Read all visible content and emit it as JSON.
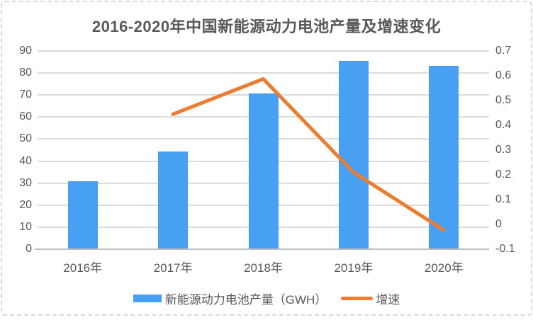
{
  "chart_data": {
    "type": "bar",
    "subtype": "combo-bar-line-dual-axis",
    "title": "2016-2020年中国新能源动力电池产量及增速变化",
    "categories": [
      "2016年",
      "2017年",
      "2018年",
      "2019年",
      "2020年"
    ],
    "series": [
      {
        "name": "新能源动力电池产量（GWH）",
        "type": "bar",
        "axis": "left",
        "color": "#47A0F4",
        "values": [
          30.8,
          44.5,
          70.6,
          85.4,
          83.4
        ]
      },
      {
        "name": "增速",
        "type": "line",
        "axis": "right",
        "color": "#ED7D2E",
        "values": [
          null,
          0.445,
          0.587,
          0.21,
          -0.023
        ]
      }
    ],
    "left_axis": {
      "min": 0,
      "max": 90,
      "step": 10,
      "ticks": [
        "90",
        "80",
        "70",
        "60",
        "50",
        "40",
        "30",
        "20",
        "10",
        "0"
      ]
    },
    "right_axis": {
      "min": -0.1,
      "max": 0.7,
      "step": 0.1,
      "ticks": [
        "0.7",
        "0.6",
        "0.5",
        "0.4",
        "0.3",
        "0.2",
        "0.1",
        "0",
        "-0.1"
      ]
    },
    "grid": true,
    "legend_position": "bottom",
    "colors": {
      "gridline": "#DBDBDB",
      "axis_line": "#BFBFBF",
      "text": "#595959",
      "title_text": "#595959",
      "background": "#FFFFFF",
      "frame_border": "#D9D9D9"
    }
  },
  "legend": {
    "items": [
      {
        "label": "新能源动力电池产量（GWH）"
      },
      {
        "label": "增速"
      }
    ]
  }
}
